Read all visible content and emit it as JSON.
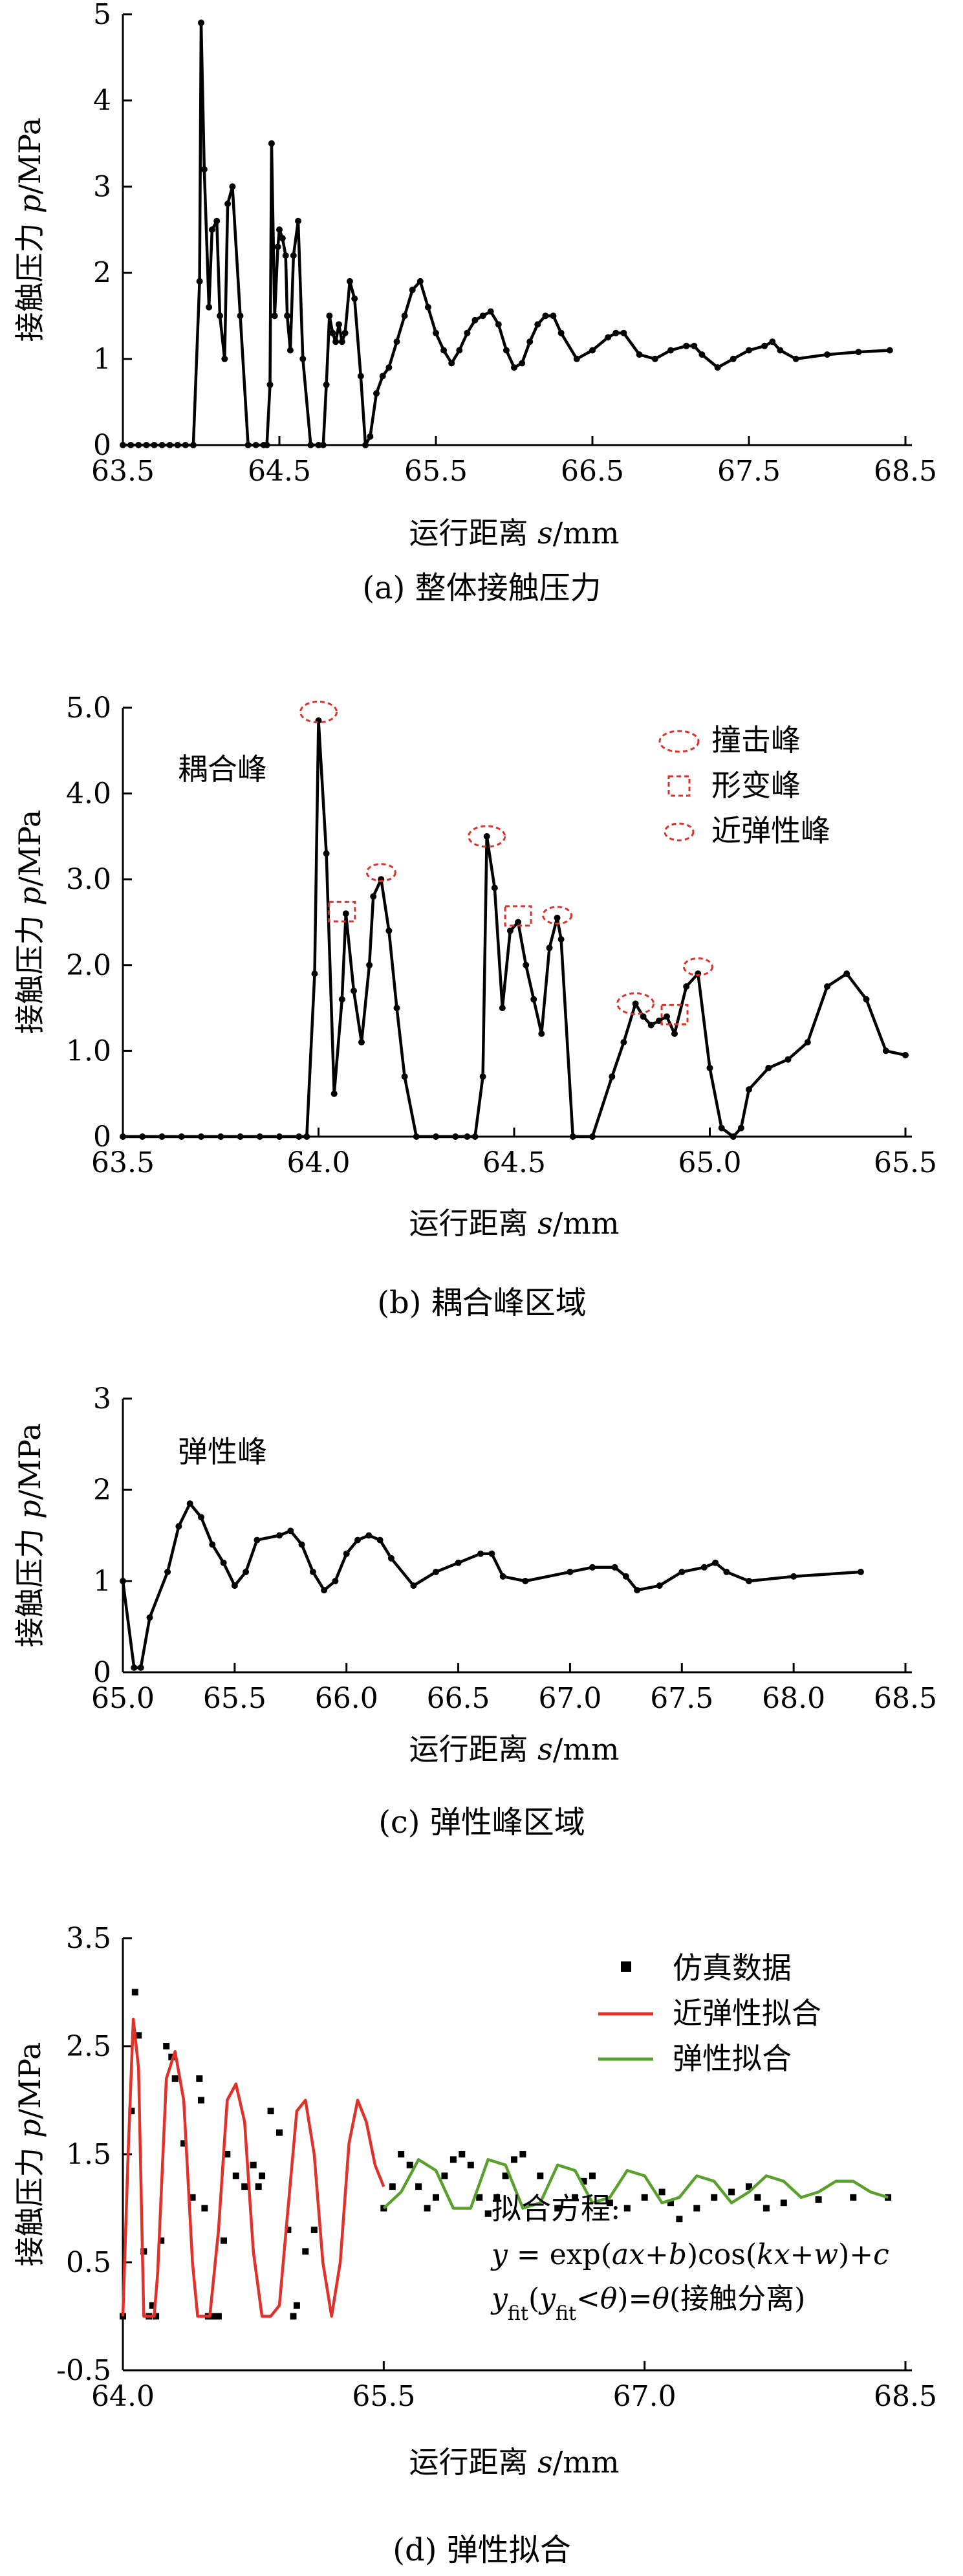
{
  "chart_data": [
    {
      "id": "a",
      "type": "line",
      "caption": "(a) 整体接触压力",
      "xlabel_prefix": "运行距离 ",
      "xlabel_var": "s",
      "xlabel_unit": "/mm",
      "ylabel_prefix": "接触压力 ",
      "ylabel_var": "p",
      "ylabel_unit": "/MPa",
      "xlim": [
        63.5,
        68.5
      ],
      "ylim": [
        0,
        5
      ],
      "xticks": [
        "63.5",
        "64.5",
        "65.5",
        "66.5",
        "67.5",
        "68.5"
      ],
      "yticks": [
        "0",
        "1",
        "2",
        "3",
        "4",
        "5"
      ],
      "grid": false,
      "series": [
        {
          "color": "#000000",
          "markers": true,
          "x": [
            63.5,
            63.55,
            63.6,
            63.65,
            63.7,
            63.75,
            63.8,
            63.85,
            63.9,
            63.95,
            63.99,
            64.0,
            64.02,
            64.05,
            64.07,
            64.1,
            64.12,
            64.15,
            64.17,
            64.2,
            64.25,
            64.3,
            64.35,
            64.4,
            64.42,
            64.44,
            64.45,
            64.47,
            64.49,
            64.5,
            64.52,
            64.54,
            64.55,
            64.57,
            64.59,
            64.62,
            64.65,
            64.7,
            64.75,
            64.78,
            64.8,
            64.82,
            64.84,
            64.86,
            64.88,
            64.9,
            64.92,
            64.95,
            64.98,
            65.02,
            65.05,
            65.08,
            65.12,
            65.16,
            65.2,
            65.25,
            65.3,
            65.35,
            65.4,
            65.45,
            65.5,
            65.55,
            65.6,
            65.65,
            65.7,
            65.75,
            65.8,
            65.85,
            65.9,
            65.95,
            66.0,
            66.05,
            66.1,
            66.15,
            66.2,
            66.25,
            66.3,
            66.4,
            66.5,
            66.6,
            66.65,
            66.7,
            66.8,
            66.9,
            67.0,
            67.1,
            67.15,
            67.2,
            67.3,
            67.4,
            67.5,
            67.6,
            67.65,
            67.7,
            67.8,
            68.0,
            68.2,
            68.4
          ],
          "y": [
            0,
            0,
            0,
            0,
            0,
            0,
            0,
            0,
            0,
            0,
            1.9,
            4.9,
            3.2,
            1.6,
            2.5,
            2.6,
            1.5,
            1.0,
            2.8,
            3.0,
            1.5,
            0,
            0,
            0,
            0,
            0.7,
            3.5,
            1.5,
            2.3,
            2.5,
            2.4,
            2.2,
            1.5,
            1.1,
            2.2,
            2.6,
            1.0,
            0,
            0,
            0,
            0.7,
            1.5,
            1.3,
            1.2,
            1.4,
            1.2,
            1.3,
            1.9,
            1.7,
            0.8,
            0,
            0.1,
            0.6,
            0.8,
            0.9,
            1.2,
            1.5,
            1.8,
            1.9,
            1.6,
            1.3,
            1.1,
            0.95,
            1.1,
            1.3,
            1.45,
            1.5,
            1.55,
            1.4,
            1.1,
            0.9,
            0.95,
            1.2,
            1.4,
            1.5,
            1.5,
            1.3,
            1.0,
            1.1,
            1.25,
            1.3,
            1.3,
            1.05,
            1.0,
            1.1,
            1.15,
            1.15,
            1.05,
            0.9,
            1.0,
            1.1,
            1.15,
            1.2,
            1.1,
            1.0,
            1.05,
            1.08,
            1.1
          ]
        }
      ],
      "annotations": []
    },
    {
      "id": "b",
      "type": "line",
      "caption": "(b) 耦合峰区域",
      "xlabel_prefix": "运行距离 ",
      "xlabel_var": "s",
      "xlabel_unit": "/mm",
      "ylabel_prefix": "接触压力 ",
      "ylabel_var": "p",
      "ylabel_unit": "/MPa",
      "xlim": [
        63.5,
        65.5
      ],
      "ylim": [
        0,
        5
      ],
      "xticks": [
        "63.5",
        "64.0",
        "64.5",
        "65.0",
        "65.5"
      ],
      "yticks": [
        "0",
        "1.0",
        "2.0",
        "3.0",
        "4.0",
        "5.0"
      ],
      "grid": false,
      "series": [
        {
          "color": "#000000",
          "markers": true,
          "x": [
            63.5,
            63.55,
            63.6,
            63.65,
            63.7,
            63.75,
            63.8,
            63.85,
            63.9,
            63.95,
            63.97,
            63.99,
            64.0,
            64.02,
            64.04,
            64.06,
            64.07,
            64.09,
            64.11,
            64.13,
            64.14,
            64.16,
            64.18,
            64.2,
            64.22,
            64.25,
            64.3,
            64.35,
            64.38,
            64.4,
            64.42,
            64.43,
            64.45,
            64.47,
            64.49,
            64.51,
            64.53,
            64.55,
            64.57,
            64.59,
            64.61,
            64.62,
            64.65,
            64.7,
            64.75,
            64.78,
            64.81,
            64.83,
            64.85,
            64.87,
            64.89,
            64.91,
            64.94,
            64.97,
            65.0,
            65.03,
            65.06,
            65.08,
            65.1,
            65.15,
            65.2,
            65.25,
            65.3,
            65.35,
            65.4,
            65.45,
            65.5
          ],
          "y": [
            0,
            0,
            0,
            0,
            0,
            0,
            0,
            0,
            0,
            0,
            0,
            1.9,
            4.85,
            3.3,
            0.5,
            1.6,
            2.6,
            1.7,
            1.1,
            2.0,
            2.8,
            3.0,
            2.4,
            1.5,
            0.7,
            0,
            0,
            0,
            0,
            0,
            0.7,
            3.5,
            2.9,
            1.5,
            2.4,
            2.5,
            2.0,
            1.6,
            1.2,
            2.2,
            2.55,
            2.3,
            0,
            0,
            0.7,
            1.1,
            1.55,
            1.4,
            1.3,
            1.35,
            1.4,
            1.2,
            1.75,
            1.9,
            0.8,
            0.1,
            0,
            0.1,
            0.55,
            0.8,
            0.9,
            1.1,
            1.75,
            1.9,
            1.6,
            1.0,
            0.95
          ]
        }
      ],
      "annotations": [
        {
          "x": 64.0,
          "y": 4.95,
          "shape": "ellipse"
        },
        {
          "x": 64.06,
          "y": 2.6,
          "shape": "rect"
        },
        {
          "x": 64.16,
          "y": 3.05,
          "shape": "ellipse-small"
        },
        {
          "x": 64.43,
          "y": 3.5,
          "shape": "ellipse"
        },
        {
          "x": 64.51,
          "y": 2.55,
          "shape": "rect"
        },
        {
          "x": 64.61,
          "y": 2.55,
          "shape": "ellipse-small"
        },
        {
          "x": 64.81,
          "y": 1.55,
          "shape": "ellipse"
        },
        {
          "x": 64.91,
          "y": 1.4,
          "shape": "rect"
        },
        {
          "x": 64.97,
          "y": 1.95,
          "shape": "ellipse-small"
        }
      ],
      "label_text": "耦合峰",
      "legend": [
        "撞击峰",
        "形变峰",
        "近弹性峰"
      ],
      "legend_color": "#d9332b"
    },
    {
      "id": "c",
      "type": "line",
      "caption": "(c) 弹性峰区域",
      "xlabel_prefix": "运行距离 ",
      "xlabel_var": "s",
      "xlabel_unit": "/mm",
      "ylabel_prefix": "接触压力 ",
      "ylabel_var": "p",
      "ylabel_unit": "/MPa",
      "xlim": [
        65.0,
        68.5
      ],
      "ylim": [
        0,
        3
      ],
      "xticks": [
        "65.0",
        "65.5",
        "66.0",
        "66.5",
        "67.0",
        "67.5",
        "68.0",
        "68.5"
      ],
      "yticks": [
        "0",
        "1",
        "2",
        "3"
      ],
      "grid": false,
      "series": [
        {
          "color": "#000000",
          "markers": true,
          "x": [
            65.0,
            65.05,
            65.08,
            65.12,
            65.2,
            65.25,
            65.3,
            65.35,
            65.4,
            65.45,
            65.5,
            65.55,
            65.6,
            65.7,
            65.75,
            65.8,
            65.85,
            65.9,
            65.95,
            66.0,
            66.05,
            66.1,
            66.15,
            66.2,
            66.3,
            66.4,
            66.5,
            66.6,
            66.65,
            66.7,
            66.8,
            67.0,
            67.1,
            67.2,
            67.25,
            67.3,
            67.4,
            67.5,
            67.6,
            67.65,
            67.7,
            67.8,
            68.0,
            68.3
          ],
          "y": [
            1.0,
            0.05,
            0.05,
            0.6,
            1.1,
            1.6,
            1.85,
            1.7,
            1.4,
            1.2,
            0.95,
            1.1,
            1.45,
            1.5,
            1.55,
            1.4,
            1.1,
            0.9,
            1.0,
            1.3,
            1.45,
            1.5,
            1.45,
            1.25,
            0.95,
            1.1,
            1.2,
            1.3,
            1.3,
            1.05,
            1.0,
            1.1,
            1.15,
            1.15,
            1.05,
            0.9,
            0.95,
            1.1,
            1.15,
            1.2,
            1.1,
            1.0,
            1.05,
            1.1
          ]
        }
      ],
      "annotations": [],
      "label_text": "弹性峰"
    },
    {
      "id": "d",
      "type": "scatter",
      "caption": "(d) 弹性拟合",
      "xlabel_prefix": "运行距离 ",
      "xlabel_var": "s",
      "xlabel_unit": "/mm",
      "ylabel_prefix": "接触压力 ",
      "ylabel_var": "p",
      "ylabel_unit": "/MPa",
      "xlim": [
        64.0,
        68.5
      ],
      "ylim": [
        -0.5,
        3.5
      ],
      "xticks": [
        "64.0",
        "65.5",
        "67.0",
        "68.5"
      ],
      "yticks": [
        "-0.5",
        "0.5",
        "1.5",
        "2.5",
        "3.5"
      ],
      "grid": false,
      "scatter": {
        "name": "仿真数据",
        "color": "#000000",
        "x": [
          64.0,
          64.05,
          64.07,
          64.09,
          64.12,
          64.15,
          64.17,
          64.19,
          64.22,
          64.25,
          64.28,
          64.3,
          64.35,
          64.4,
          64.44,
          64.45,
          64.47,
          64.49,
          64.5,
          64.52,
          64.55,
          64.58,
          64.6,
          64.65,
          64.7,
          64.75,
          64.78,
          64.8,
          64.85,
          64.9,
          64.95,
          64.98,
          65.0,
          65.05,
          65.1,
          65.5,
          65.55,
          65.6,
          65.65,
          65.7,
          65.75,
          65.8,
          65.85,
          65.9,
          65.95,
          66.0,
          66.05,
          66.1,
          66.15,
          66.2,
          66.25,
          66.3,
          66.4,
          66.5,
          66.6,
          66.65,
          66.7,
          66.8,
          66.9,
          67.0,
          67.1,
          67.15,
          67.2,
          67.3,
          67.4,
          67.5,
          67.6,
          67.65,
          67.7,
          67.8,
          68.0,
          68.2,
          68.4
        ],
        "y": [
          0.0,
          1.9,
          3.0,
          2.6,
          0.6,
          0.0,
          0.1,
          0.0,
          0.7,
          2.5,
          2.4,
          2.2,
          1.6,
          1.1,
          2.2,
          2.0,
          1.0,
          0.0,
          0.0,
          0.0,
          0.0,
          0.7,
          1.5,
          1.3,
          1.2,
          1.4,
          1.2,
          1.3,
          1.9,
          1.7,
          0.8,
          0.0,
          0.1,
          0.6,
          0.8,
          1.0,
          1.2,
          1.5,
          1.4,
          1.2,
          1.0,
          1.1,
          1.3,
          1.45,
          1.5,
          1.4,
          1.1,
          0.95,
          1.1,
          1.3,
          1.45,
          1.5,
          1.3,
          1.0,
          1.1,
          1.25,
          1.3,
          1.05,
          1.0,
          1.1,
          1.15,
          1.05,
          0.9,
          1.0,
          1.1,
          1.15,
          1.2,
          1.1,
          1.0,
          1.05,
          1.08,
          1.1,
          1.1
        ]
      },
      "series": [
        {
          "name": "近弹性拟合",
          "color": "#e0312b",
          "x": [
            64.0,
            64.03,
            64.06,
            64.09,
            64.12,
            64.15,
            64.18,
            64.2,
            64.25,
            64.3,
            64.35,
            64.4,
            64.43,
            64.46,
            64.5,
            64.55,
            64.6,
            64.65,
            64.7,
            64.75,
            64.8,
            64.85,
            64.9,
            64.95,
            65.0,
            65.05,
            65.1,
            65.15,
            65.2,
            65.25,
            65.3,
            65.35,
            65.4,
            65.45,
            65.5
          ],
          "y": [
            0.0,
            1.5,
            2.75,
            2.3,
            0.0,
            0.0,
            0.0,
            0.4,
            2.2,
            2.45,
            2.0,
            0.5,
            0.0,
            0.0,
            0.0,
            0.8,
            2.0,
            2.15,
            1.8,
            0.6,
            0.0,
            0.0,
            0.1,
            1.0,
            1.9,
            2.0,
            1.5,
            0.5,
            0.0,
            0.5,
            1.6,
            2.0,
            1.8,
            1.4,
            1.2
          ]
        },
        {
          "name": "弹性拟合",
          "color": "#5aa02c",
          "x": [
            65.5,
            65.6,
            65.7,
            65.8,
            65.9,
            66.0,
            66.1,
            66.2,
            66.3,
            66.4,
            66.5,
            66.6,
            66.7,
            66.8,
            66.9,
            67.0,
            67.1,
            67.2,
            67.3,
            67.4,
            67.5,
            67.6,
            67.7,
            67.8,
            67.9,
            68.0,
            68.1,
            68.2,
            68.3,
            68.4
          ],
          "y": [
            1.0,
            1.15,
            1.45,
            1.35,
            1.0,
            1.0,
            1.45,
            1.4,
            1.0,
            1.05,
            1.4,
            1.35,
            1.05,
            1.1,
            1.35,
            1.3,
            1.05,
            1.1,
            1.3,
            1.25,
            1.05,
            1.15,
            1.3,
            1.25,
            1.1,
            1.15,
            1.25,
            1.25,
            1.15,
            1.1
          ]
        }
      ],
      "equation_title": "拟合方程:",
      "equation_line1": "y = exp(ax+b)cos(kx+w)+c",
      "equation_line2": "y_fit(y_fit<θ)=θ(接触分离)"
    }
  ]
}
